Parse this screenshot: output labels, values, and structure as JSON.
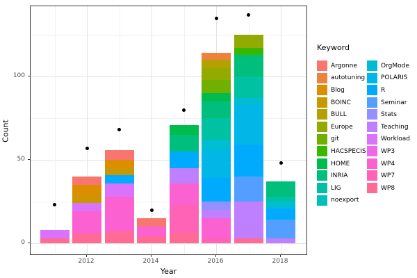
{
  "figure": {
    "x_axis_title": "Year",
    "y_axis_title": "Count",
    "legend_title": "Keyword"
  },
  "chart_data": {
    "type": "bar",
    "stacked": true,
    "title": "",
    "xlabel": "Year",
    "ylabel": "Count",
    "ylim": [
      0,
      142
    ],
    "yticks_major": [
      0,
      50,
      100
    ],
    "yticks_minor": [
      25,
      75,
      125
    ],
    "xtick_labels": [
      "2012",
      "2014",
      "2016",
      "2018"
    ],
    "xtick_years": [
      2012,
      2014,
      2016,
      2018
    ],
    "years_grid": [
      2011,
      2012,
      2013,
      2014,
      2015,
      2016,
      2017,
      2018
    ],
    "legend_position": "right",
    "grid": true,
    "keywords": [
      {
        "label": "Argonne",
        "color": "#F8766D"
      },
      {
        "label": "autotuning",
        "color": "#EC823C"
      },
      {
        "label": "Blog",
        "color": "#DB8E00"
      },
      {
        "label": "BOINC",
        "color": "#C99800"
      },
      {
        "label": "BULL",
        "color": "#B2A100"
      },
      {
        "label": "Europe",
        "color": "#93AA00"
      },
      {
        "label": "git",
        "color": "#6FB000"
      },
      {
        "label": "HACSPECIS",
        "color": "#39B600"
      },
      {
        "label": "HOME",
        "color": "#00BB4E"
      },
      {
        "label": "INRIA",
        "color": "#00BF7D"
      },
      {
        "label": "LIG",
        "color": "#00C1A2"
      },
      {
        "label": "noexport",
        "color": "#00C0BE"
      },
      {
        "label": "OrgMode",
        "color": "#00BDD4"
      },
      {
        "label": "POLARIS",
        "color": "#00B7E8"
      },
      {
        "label": "R",
        "color": "#00ABFD"
      },
      {
        "label": "Seminar",
        "color": "#539FFF"
      },
      {
        "label": "Stats",
        "color": "#9590FF"
      },
      {
        "label": "Teaching",
        "color": "#BF80FF"
      },
      {
        "label": "Workload",
        "color": "#DB72FB"
      },
      {
        "label": "WP3",
        "color": "#F066E8"
      },
      {
        "label": "WP4",
        "color": "#FB61D0"
      },
      {
        "label": "WP7",
        "color": "#FF63B6"
      },
      {
        "label": "WP8",
        "color": "#FF6B94"
      }
    ],
    "legend_columns": [
      [
        "Argonne",
        "autotuning",
        "Blog",
        "BOINC",
        "BULL",
        "Europe",
        "git",
        "HACSPECIS",
        "HOME",
        "INRIA",
        "LIG",
        "noexport"
      ],
      [
        "OrgMode",
        "POLARIS",
        "R",
        "Seminar",
        "Stats",
        "Teaching",
        "Workload",
        "WP3",
        "WP4",
        "WP7",
        "WP8"
      ]
    ],
    "bars": [
      {
        "year": 2011,
        "total": 8,
        "segments": [
          {
            "k": "WP8",
            "v": 3
          },
          {
            "k": "Workload",
            "v": 5
          }
        ]
      },
      {
        "year": 2012,
        "total": 40,
        "segments": [
          {
            "k": "WP8",
            "v": 6
          },
          {
            "k": "WP4",
            "v": 13
          },
          {
            "k": "Workload",
            "v": 5
          },
          {
            "k": "BOINC",
            "v": 4
          },
          {
            "k": "Blog",
            "v": 7
          },
          {
            "k": "Argonne",
            "v": 5
          }
        ]
      },
      {
        "year": 2013,
        "total": 56,
        "segments": [
          {
            "k": "WP8",
            "v": 7
          },
          {
            "k": "WP4",
            "v": 21
          },
          {
            "k": "Workload",
            "v": 8
          },
          {
            "k": "R",
            "v": 5
          },
          {
            "k": "BOINC",
            "v": 4
          },
          {
            "k": "Blog",
            "v": 5
          },
          {
            "k": "Argonne",
            "v": 6
          }
        ]
      },
      {
        "year": 2014,
        "total": 15,
        "segments": [
          {
            "k": "WP8",
            "v": 4
          },
          {
            "k": "WP4",
            "v": 6
          },
          {
            "k": "Argonne",
            "v": 5
          }
        ]
      },
      {
        "year": 2015,
        "total": 71,
        "segments": [
          {
            "k": "WP8",
            "v": 6
          },
          {
            "k": "WP7",
            "v": 17
          },
          {
            "k": "WP4",
            "v": 13
          },
          {
            "k": "Teaching",
            "v": 9
          },
          {
            "k": "R",
            "v": 10
          },
          {
            "k": "INRIA",
            "v": 10
          },
          {
            "k": "HOME",
            "v": 6
          }
        ]
      },
      {
        "year": 2016,
        "total": 114,
        "segments": [
          {
            "k": "WP7",
            "v": 3
          },
          {
            "k": "WP4",
            "v": 12
          },
          {
            "k": "Teaching",
            "v": 5
          },
          {
            "k": "Stats",
            "v": 5
          },
          {
            "k": "R",
            "v": 14
          },
          {
            "k": "POLARIS",
            "v": 17
          },
          {
            "k": "OrgMode",
            "v": 6
          },
          {
            "k": "LIG",
            "v": 13
          },
          {
            "k": "INRIA",
            "v": 10
          },
          {
            "k": "HOME",
            "v": 5
          },
          {
            "k": "git",
            "v": 8
          },
          {
            "k": "Europe",
            "v": 7
          },
          {
            "k": "BULL",
            "v": 5
          },
          {
            "k": "autotuning",
            "v": 4
          }
        ]
      },
      {
        "year": 2017,
        "total": 125,
        "segments": [
          {
            "k": "WP8",
            "v": 3
          },
          {
            "k": "Teaching",
            "v": 22
          },
          {
            "k": "Seminar",
            "v": 15
          },
          {
            "k": "R",
            "v": 19
          },
          {
            "k": "POLARIS",
            "v": 24
          },
          {
            "k": "OrgMode",
            "v": 4
          },
          {
            "k": "LIG",
            "v": 13
          },
          {
            "k": "INRIA",
            "v": 13
          },
          {
            "k": "HACSPECIS",
            "v": 4
          },
          {
            "k": "Europe",
            "v": 8
          }
        ]
      },
      {
        "year": 2018,
        "total": 37,
        "segments": [
          {
            "k": "Teaching",
            "v": 3
          },
          {
            "k": "Seminar",
            "v": 11
          },
          {
            "k": "R",
            "v": 7
          },
          {
            "k": "OrgMode",
            "v": 4
          },
          {
            "k": "LIG",
            "v": 3
          },
          {
            "k": "INRIA",
            "v": 9
          }
        ]
      }
    ],
    "points": {
      "marker": "filled-circle",
      "color": "#000000",
      "values": [
        {
          "year": 2011,
          "value": 23
        },
        {
          "year": 2012,
          "value": 57
        },
        {
          "year": 2013,
          "value": 68
        },
        {
          "year": 2014,
          "value": 20
        },
        {
          "year": 2015,
          "value": 80
        },
        {
          "year": 2016,
          "value": 135
        },
        {
          "year": 2017,
          "value": 137
        },
        {
          "year": 2018,
          "value": 48
        }
      ]
    }
  }
}
